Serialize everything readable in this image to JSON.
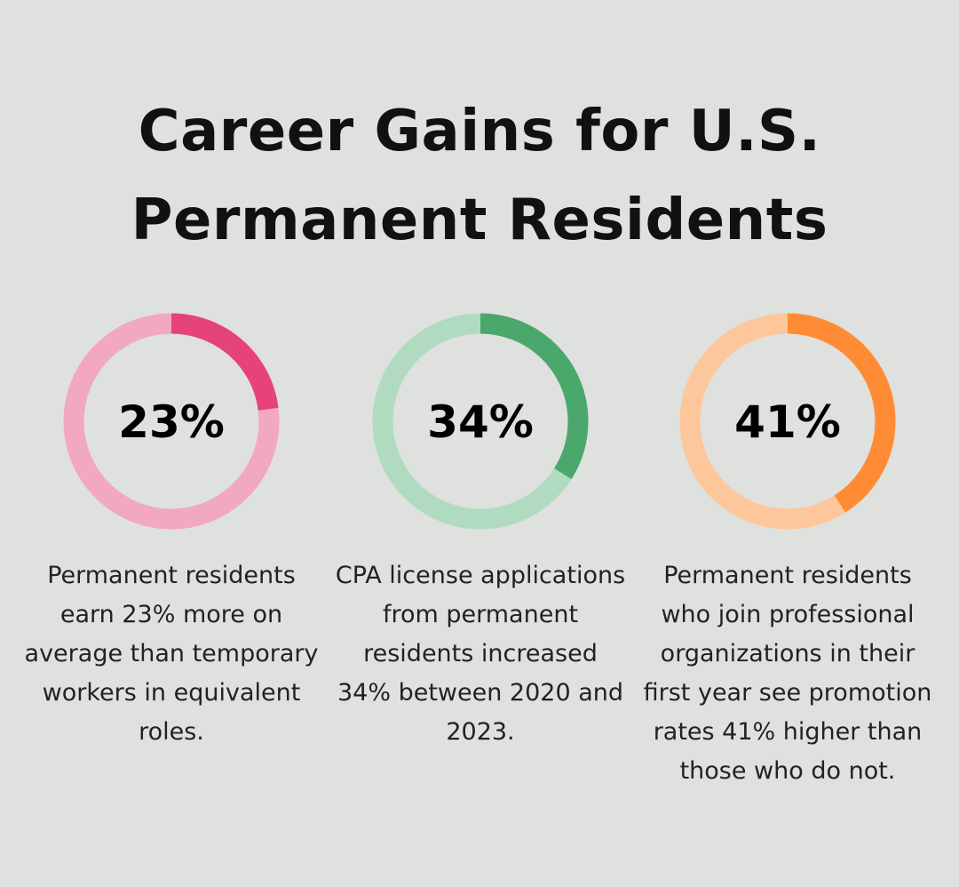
{
  "title_line1": "Career Gains for U.S.",
  "title_line2": "Permanent Residents",
  "chart_data": [
    {
      "type": "pie",
      "variant": "donut",
      "value": 23,
      "max": 100,
      "label": "23%",
      "track_color": "#f2a8c0",
      "fill_color": "#e5437a",
      "description": "Permanent residents earn 23% more on average than temporary workers in equivalent roles."
    },
    {
      "type": "pie",
      "variant": "donut",
      "value": 34,
      "max": 100,
      "label": "34%",
      "track_color": "#b1dbc1",
      "fill_color": "#4aa86c",
      "description": "CPA license applications from permanent residents increased 34% between 2020 and 2023."
    },
    {
      "type": "pie",
      "variant": "donut",
      "value": 41,
      "max": 100,
      "label": "41%",
      "track_color": "#fdc79b",
      "fill_color": "#ff8c35",
      "description": "Permanent residents who join professional organizations in their first year see promotion rates 41% higher than those who do not."
    }
  ]
}
